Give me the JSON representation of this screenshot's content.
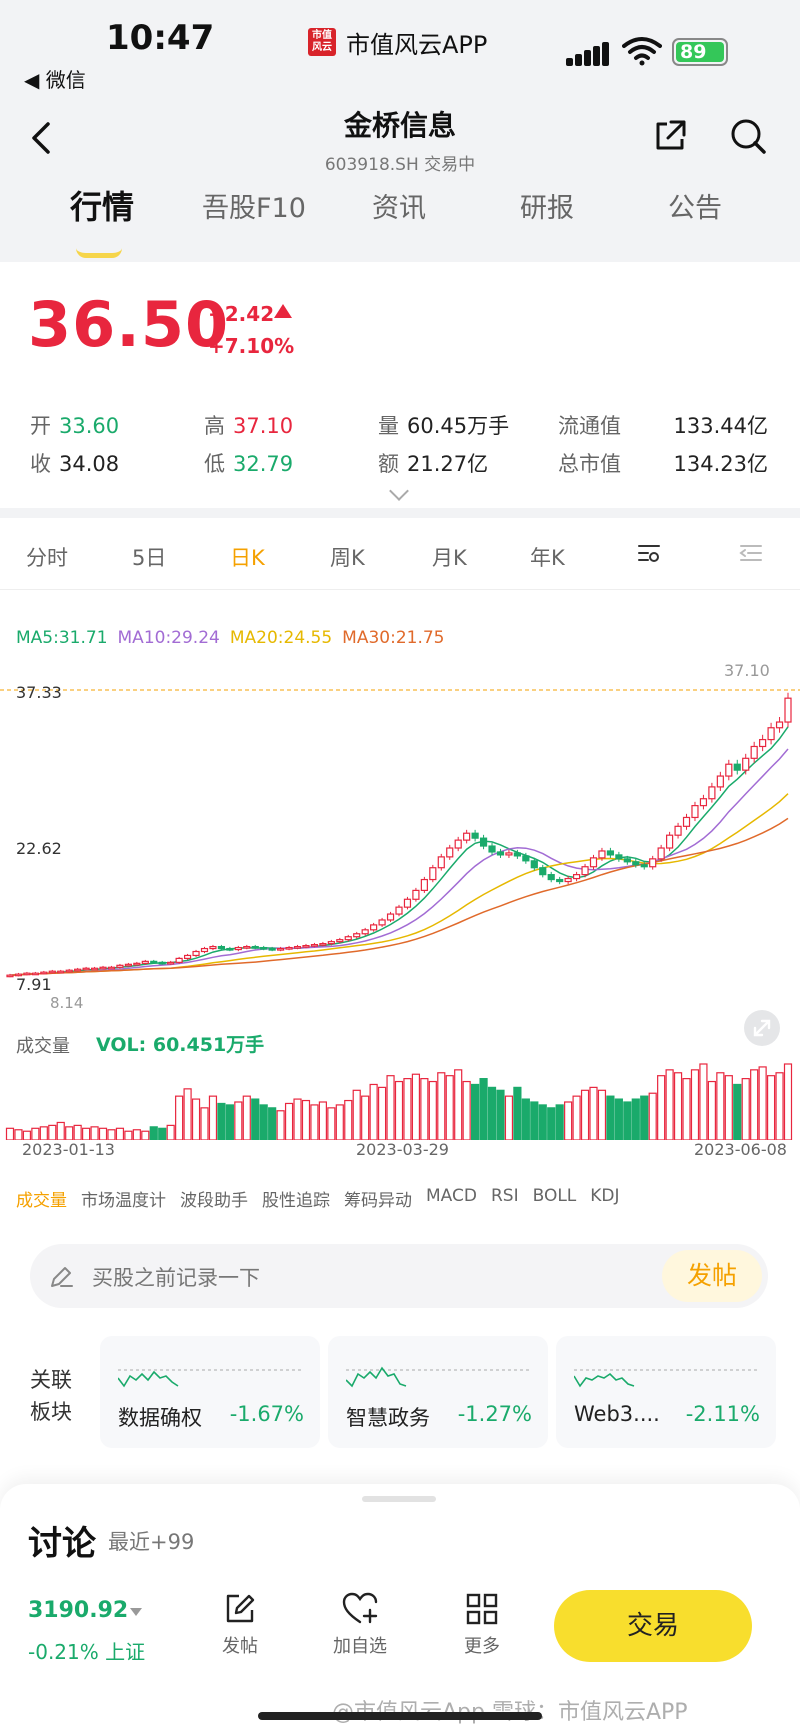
{
  "status_bar": {
    "time": "10:47",
    "back_app": "◀ 微信",
    "app_logo_text": "市值风云",
    "app_name": "市值风云APP",
    "battery": "89"
  },
  "header": {
    "title": "金桥信息",
    "subtitle": "603918.SH 交易中"
  },
  "tabs": [
    "行情",
    "吾股F10",
    "资讯",
    "研报",
    "公告"
  ],
  "quote": {
    "price": "36.50",
    "change_abs": "+2.42",
    "change_pct": "+7.10%",
    "stats": [
      {
        "label": "开",
        "value": "33.60"
      },
      {
        "label": "收",
        "value": "34.08"
      },
      {
        "label": "高",
        "value": "37.10"
      },
      {
        "label": "低",
        "value": "32.79"
      },
      {
        "label": "量",
        "value": "60.45万手"
      },
      {
        "label": "额",
        "value": "21.27亿"
      },
      {
        "label": "流通值",
        "value": "133.44亿"
      },
      {
        "label": "总市值",
        "value": "134.23亿"
      }
    ]
  },
  "period_tabs": [
    "分时",
    "5日",
    "日K",
    "周K",
    "月K",
    "年K"
  ],
  "ma": {
    "ma5": "MA5:31.71",
    "ma10": "MA10:29.24",
    "ma20": "MA20:24.55",
    "ma30": "MA30:21.75"
  },
  "chart_labels": {
    "y_top": "37.33",
    "y_mid": "22.62",
    "y_bottom": "7.91",
    "high_marker": "37.10",
    "low_marker": "8.14",
    "vol_label": "成交量",
    "vol_value": "VOL: 60.451万手",
    "dates": [
      "2023-01-13",
      "2023-03-29",
      "2023-06-08"
    ]
  },
  "indicator_tabs": [
    "成交量",
    "市场温度计",
    "波段助手",
    "股性追踪",
    "筹码异动",
    "MACD",
    "RSI",
    "BOLL",
    "KDJ"
  ],
  "post": {
    "placeholder": "买股之前记录一下",
    "button": "发帖"
  },
  "related": {
    "label": "关联板块",
    "sectors": [
      {
        "name": "数据确权",
        "change": "-1.67%"
      },
      {
        "name": "智慧政务",
        "change": "-1.27%"
      },
      {
        "name": "Web3....",
        "change": "-2.11%"
      }
    ]
  },
  "bottom": {
    "title": "讨论",
    "recent": "最近+99",
    "index_value": "3190.92",
    "index_change": "-0.21%",
    "index_name": "上证",
    "actions": [
      "发帖",
      "加自选",
      "更多"
    ],
    "trade": "交易"
  },
  "watermark": "@市值风云App    雪球：市值风云APP",
  "colors": {
    "up": "#e8263e",
    "down": "#1aaa6b",
    "accent": "#f5a100",
    "trade_button": "#f8de2d"
  },
  "chart_data": {
    "type": "candlestick",
    "y_axis_ticks": [
      37.33,
      22.62,
      7.91
    ],
    "x_axis_ticks": [
      "2023-01-13",
      "2023-03-29",
      "2023-06-08"
    ],
    "period_high": 37.1,
    "period_low": 8.14,
    "series": [
      {
        "name": "MA5",
        "last": 31.71
      },
      {
        "name": "MA10",
        "last": 29.24
      },
      {
        "name": "MA20",
        "last": 24.55
      },
      {
        "name": "MA30",
        "last": 21.75
      }
    ],
    "closes": [
      8.4,
      8.5,
      8.6,
      8.6,
      8.7,
      8.8,
      8.8,
      8.9,
      9.0,
      9.1,
      9.1,
      9.2,
      9.2,
      9.4,
      9.5,
      9.6,
      9.8,
      9.7,
      9.6,
      9.7,
      10.1,
      10.4,
      10.8,
      11.1,
      11.3,
      11.1,
      11.0,
      11.2,
      11.3,
      11.2,
      11.1,
      11.0,
      11.1,
      11.2,
      11.3,
      11.4,
      11.5,
      11.6,
      11.8,
      12.0,
      12.3,
      12.6,
      13.0,
      13.5,
      14.0,
      14.6,
      15.3,
      16.1,
      17.0,
      18.1,
      19.3,
      20.4,
      21.3,
      22.1,
      22.8,
      22.3,
      21.5,
      20.9,
      20.6,
      20.8,
      20.5,
      20.0,
      19.3,
      18.6,
      18.1,
      17.9,
      18.2,
      18.6,
      19.4,
      20.3,
      21.0,
      20.6,
      20.2,
      19.9,
      19.6,
      19.4,
      20.2,
      21.3,
      22.6,
      23.5,
      24.4,
      25.6,
      26.3,
      27.5,
      28.6,
      29.8,
      29.2,
      30.4,
      31.6,
      32.3,
      33.5,
      34.08,
      36.5
    ],
    "volumes": [
      8,
      7,
      6,
      8,
      9,
      10,
      12,
      9,
      10,
      8,
      9,
      8,
      7,
      8,
      6,
      7,
      6,
      9,
      8,
      10,
      30,
      35,
      28,
      22,
      30,
      25,
      24,
      26,
      30,
      28,
      24,
      22,
      20,
      25,
      28,
      27,
      24,
      26,
      22,
      24,
      27,
      34,
      30,
      38,
      36,
      44,
      40,
      42,
      45,
      42,
      40,
      46,
      44,
      48,
      40,
      38,
      42,
      36,
      34,
      30,
      36,
      28,
      26,
      24,
      22,
      24,
      26,
      30,
      34,
      36,
      34,
      30,
      28,
      26,
      28,
      30,
      32,
      44,
      48,
      46,
      42,
      48,
      52,
      40,
      46,
      44,
      38,
      42,
      48,
      50,
      44,
      46,
      52
    ]
  }
}
